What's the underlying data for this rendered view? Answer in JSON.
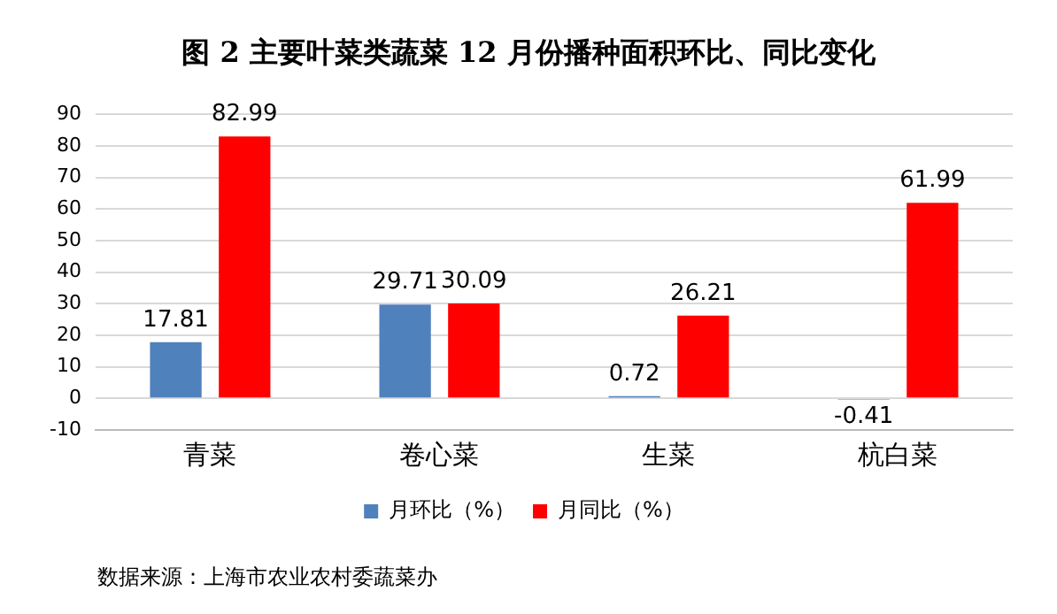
{
  "chart_data": {
    "type": "bar",
    "title": "图 2  主要叶菜类蔬菜 12 月份播种面积环比、同比变化",
    "categories": [
      "青菜",
      "卷心菜",
      "生菜",
      "杭白菜"
    ],
    "series": [
      {
        "name": "月环比（%）",
        "color": "#4f81bd",
        "values": [
          17.81,
          29.71,
          0.72,
          -0.41
        ]
      },
      {
        "name": "月同比（%）",
        "color": "#ff0000",
        "values": [
          82.99,
          30.09,
          26.21,
          61.99
        ]
      }
    ],
    "ylim": [
      -10,
      90
    ],
    "yticks": [
      -10,
      0,
      10,
      20,
      30,
      40,
      50,
      60,
      70,
      80,
      90
    ],
    "grid": "y",
    "legend": "bottom",
    "data_labels": true,
    "annotations": [
      "数据来源：上海市农业农村委蔬菜办"
    ]
  }
}
